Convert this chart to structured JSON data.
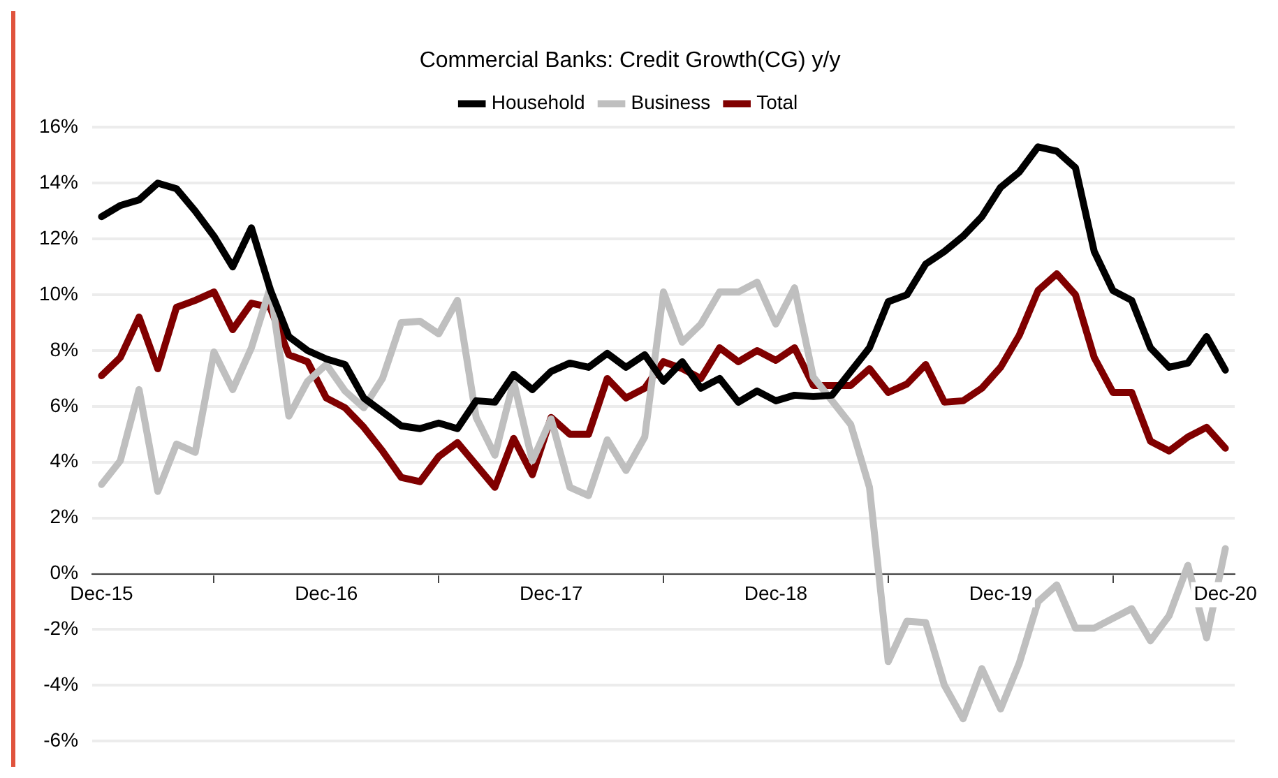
{
  "chart_data": {
    "type": "line",
    "title": "Commercial Banks: Credit Growth(CG) y/y",
    "categories": [
      "Dec-15",
      null,
      null,
      null,
      null,
      null,
      null,
      null,
      null,
      null,
      null,
      null,
      "Dec-16",
      null,
      null,
      null,
      null,
      null,
      null,
      null,
      null,
      null,
      null,
      null,
      "Dec-17",
      null,
      null,
      null,
      null,
      null,
      null,
      null,
      null,
      null,
      null,
      null,
      "Dec-18",
      null,
      null,
      null,
      null,
      null,
      null,
      null,
      null,
      null,
      null,
      null,
      "Dec-19",
      null,
      null,
      null,
      null,
      null,
      null,
      null,
      null,
      null,
      null,
      null,
      "Dec-20"
    ],
    "series": [
      {
        "name": "Household",
        "color": "#000000",
        "values": [
          12.8,
          13.2,
          13.4,
          14.0,
          13.8,
          13.0,
          12.1,
          11.0,
          12.4,
          10.2,
          8.5,
          8.0,
          7.7,
          7.5,
          6.3,
          5.8,
          5.3,
          5.2,
          5.4,
          5.2,
          6.2,
          6.15,
          7.15,
          6.6,
          7.25,
          7.55,
          7.4,
          7.9,
          7.4,
          7.85,
          6.9,
          7.6,
          6.65,
          7.0,
          6.15,
          6.55,
          6.2,
          6.4,
          6.35,
          6.4,
          7.25,
          8.1,
          9.75,
          10.0,
          11.1,
          11.55,
          12.1,
          12.8,
          13.85,
          14.4,
          15.3,
          15.15,
          14.55,
          11.55,
          10.15,
          9.8,
          8.1,
          7.4,
          7.55,
          8.5,
          7.3
        ]
      },
      {
        "name": "Business",
        "color": "#bfbfbf",
        "values": [
          3.2,
          4.05,
          6.6,
          2.95,
          4.65,
          4.35,
          7.95,
          6.6,
          8.1,
          10.25,
          5.65,
          6.9,
          7.5,
          6.55,
          5.95,
          7.0,
          9.0,
          9.05,
          8.6,
          9.8,
          5.6,
          4.25,
          6.9,
          4.05,
          5.55,
          3.1,
          2.8,
          4.8,
          3.7,
          4.9,
          10.1,
          8.3,
          8.95,
          10.1,
          10.1,
          10.45,
          8.95,
          10.25,
          7.05,
          6.2,
          5.35,
          3.1,
          -3.15,
          -1.7,
          -1.75,
          -4.0,
          -5.2,
          -3.4,
          -4.85,
          -3.2,
          -1.0,
          -0.4,
          -1.95,
          -1.95,
          -1.6,
          -1.25,
          -2.4,
          -1.5,
          0.3,
          -2.3,
          0.9
        ]
      },
      {
        "name": "Total",
        "color": "#800000",
        "values": [
          7.1,
          7.75,
          9.2,
          7.35,
          9.55,
          9.8,
          10.1,
          8.75,
          9.7,
          9.55,
          7.85,
          7.6,
          6.3,
          5.95,
          5.25,
          4.4,
          3.45,
          3.3,
          4.2,
          4.7,
          3.9,
          3.1,
          4.85,
          3.55,
          5.6,
          5.0,
          5.0,
          7.0,
          6.3,
          6.65,
          7.6,
          7.35,
          7.0,
          8.1,
          7.6,
          8.0,
          7.65,
          8.1,
          6.75,
          6.75,
          6.75,
          7.35,
          6.5,
          6.8,
          7.5,
          6.15,
          6.2,
          6.65,
          7.4,
          8.55,
          10.15,
          10.75,
          10.0,
          7.75,
          6.5,
          6.5,
          4.75,
          4.4,
          4.9,
          5.25,
          4.5
        ]
      }
    ],
    "ylim": [
      -6,
      16
    ],
    "yticks": [
      {
        "value": -6,
        "label": "-6%"
      },
      {
        "value": -4,
        "label": "-4%"
      },
      {
        "value": -2,
        "label": "-2%"
      },
      {
        "value": 0,
        "label": "0%"
      },
      {
        "value": 2,
        "label": "2%"
      },
      {
        "value": 4,
        "label": "4%"
      },
      {
        "value": 6,
        "label": "6%"
      },
      {
        "value": 8,
        "label": "8%"
      },
      {
        "value": 10,
        "label": "10%"
      },
      {
        "value": 12,
        "label": "12%"
      },
      {
        "value": 14,
        "label": "14%"
      },
      {
        "value": 16,
        "label": "16%"
      }
    ],
    "grid": "y",
    "legend": "top",
    "marker": "none",
    "line_style": "solid"
  }
}
